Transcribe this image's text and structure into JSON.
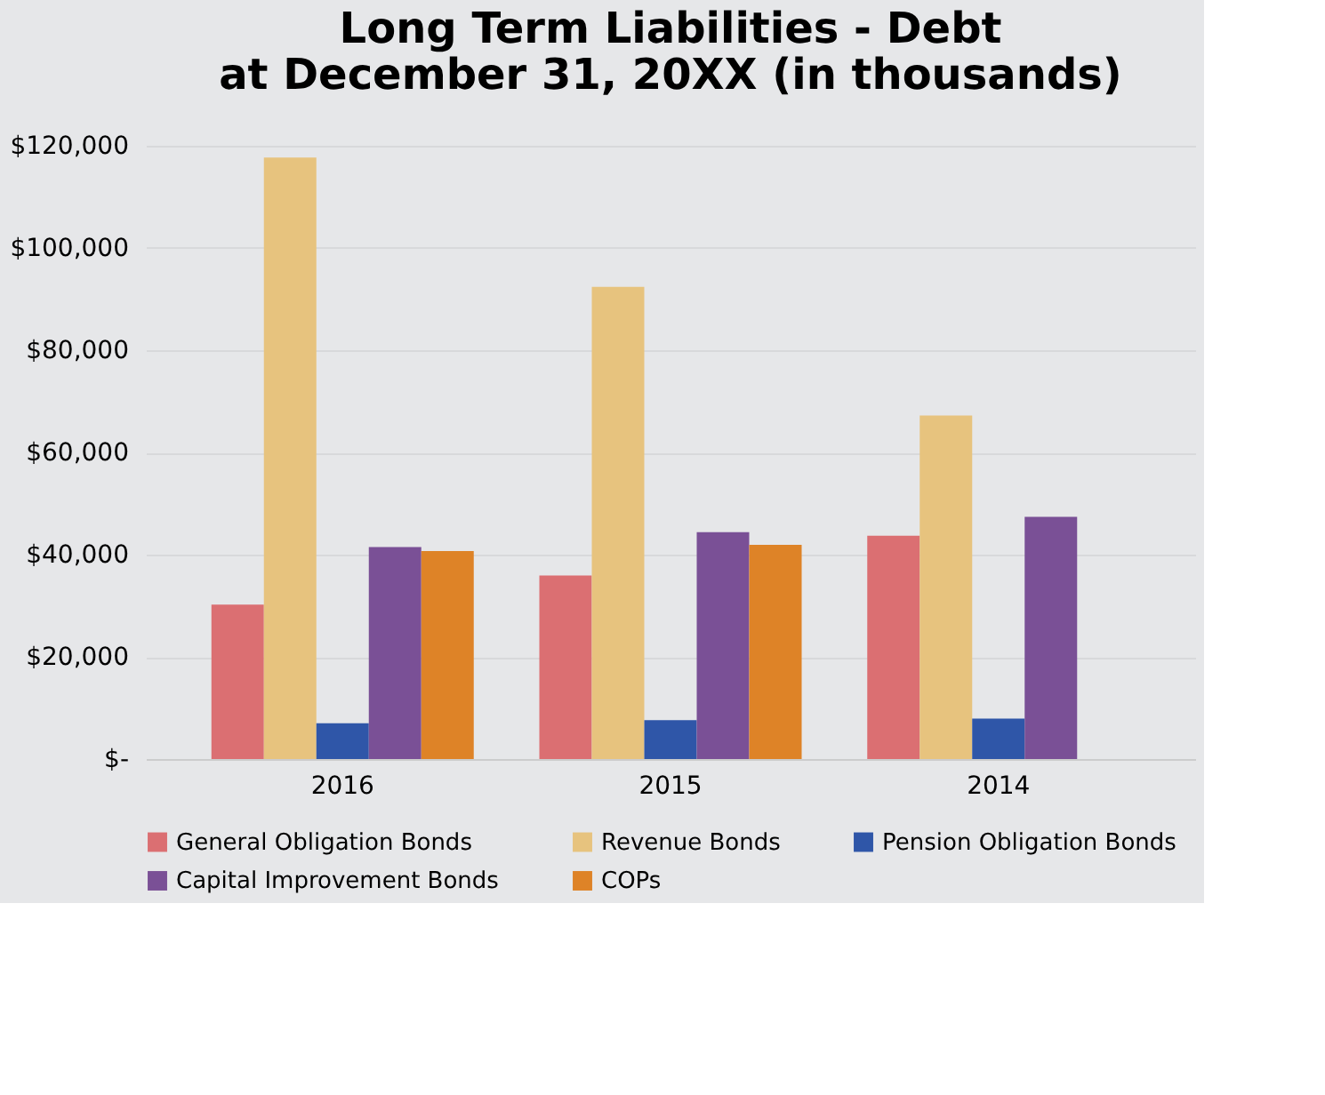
{
  "chart_data": {
    "type": "bar",
    "title": [
      "Long Term Liabilities - Debt",
      "at December 31, 20XX (in thousands)"
    ],
    "categories": [
      "2016",
      "2015",
      "2014"
    ],
    "series": [
      {
        "name": "General Obligation Bonds",
        "color": "#db6f72",
        "values": [
          30200,
          35900,
          43700
        ]
      },
      {
        "name": "Revenue Bonds",
        "color": "#e7c37e",
        "values": [
          117700,
          92400,
          67200
        ]
      },
      {
        "name": "Pension Obligation Bonds",
        "color": "#2f56a8",
        "values": [
          7000,
          7600,
          7900
        ]
      },
      {
        "name": "Capital Improvement Bonds",
        "color": "#7a5096",
        "values": [
          41500,
          44400,
          47400
        ]
      },
      {
        "name": "COPs",
        "color": "#de8327",
        "values": [
          40700,
          41900,
          0
        ]
      }
    ],
    "ylim": [
      0,
      120000
    ],
    "yticks": [
      {
        "value": 0,
        "label": "$-"
      },
      {
        "value": 20000,
        "label": "$20,000"
      },
      {
        "value": 40000,
        "label": "$40,000"
      },
      {
        "value": 60000,
        "label": "$60,000"
      },
      {
        "value": 80000,
        "label": "$80,000"
      },
      {
        "value": 100000,
        "label": "$100,000"
      },
      {
        "value": 120000,
        "label": "$120,000"
      }
    ],
    "grid": "y",
    "legend": "bottom"
  }
}
